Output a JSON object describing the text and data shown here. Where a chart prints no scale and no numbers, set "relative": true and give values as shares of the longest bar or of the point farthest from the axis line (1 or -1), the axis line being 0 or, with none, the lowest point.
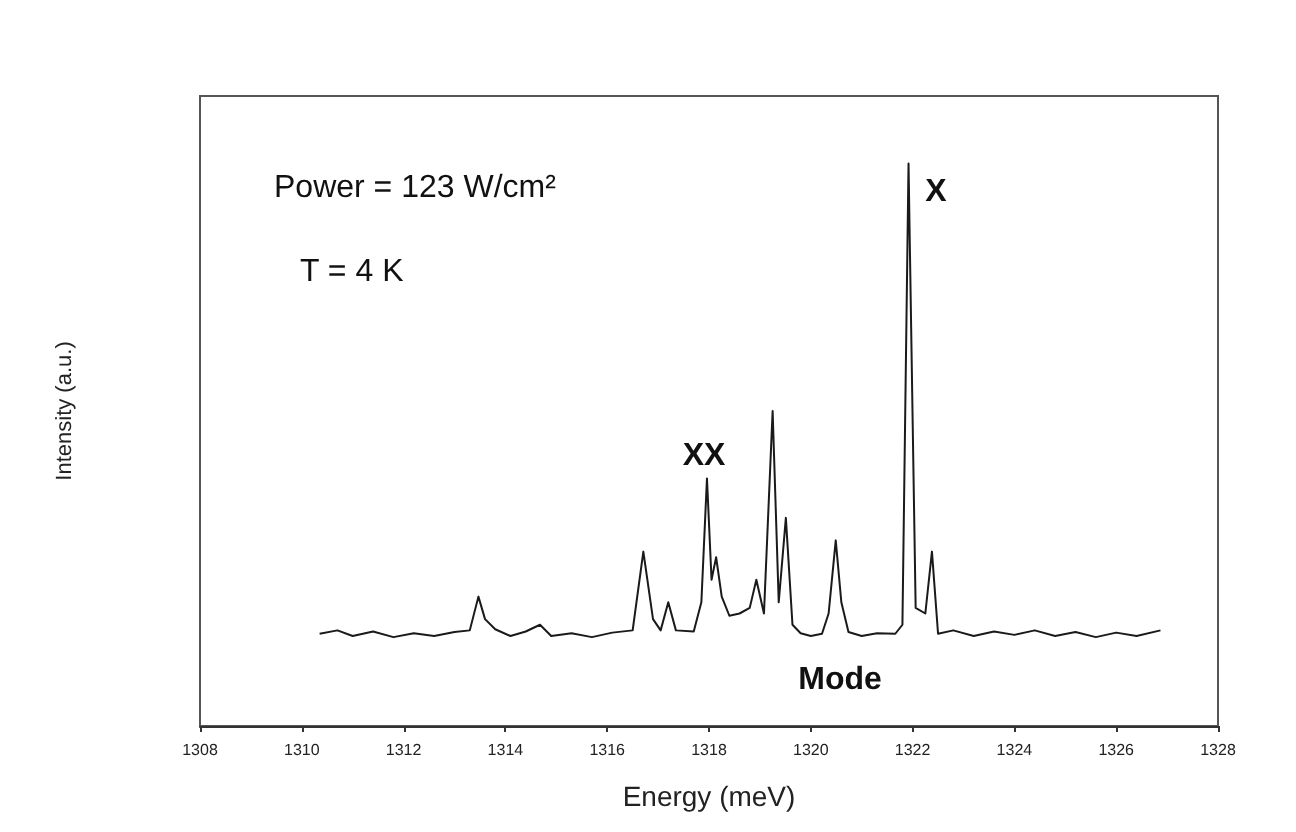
{
  "chart_data": {
    "type": "line",
    "relative": true,
    "xlabel": "Energy (meV)",
    "ylabel": "Intensity (a.u.)",
    "xlim": [
      1308,
      1328
    ],
    "xticks": [
      1308,
      1310,
      1312,
      1314,
      1316,
      1318,
      1320,
      1322,
      1324,
      1326,
      1328
    ],
    "grid": false,
    "marker": "none",
    "line_style": "solid",
    "annotations": [
      "Power = 123 W/cm²",
      "T = 4 K",
      "XX",
      "X",
      "Mode"
    ],
    "series": [
      {
        "color": "#1a1a1a",
        "x": [
          1310.35,
          1310.7,
          1311.0,
          1311.4,
          1311.8,
          1312.2,
          1312.6,
          1313.0,
          1313.3,
          1313.47,
          1313.6,
          1313.8,
          1314.1,
          1314.4,
          1314.68,
          1314.9,
          1315.3,
          1315.7,
          1316.1,
          1316.5,
          1316.71,
          1316.9,
          1317.05,
          1317.2,
          1317.35,
          1317.7,
          1317.85,
          1317.96,
          1318.05,
          1318.14,
          1318.25,
          1318.4,
          1318.6,
          1318.8,
          1318.93,
          1319.08,
          1319.25,
          1319.37,
          1319.51,
          1319.64,
          1319.8,
          1320.0,
          1320.22,
          1320.35,
          1320.49,
          1320.6,
          1320.74,
          1321.0,
          1321.3,
          1321.66,
          1321.8,
          1321.92,
          1322.06,
          1322.25,
          1322.38,
          1322.5,
          1322.8,
          1323.2,
          1323.6,
          1324.0,
          1324.4,
          1324.8,
          1325.2,
          1325.6,
          1326.0,
          1326.4,
          1326.87
        ],
        "values": [
          0.164,
          0.17,
          0.16,
          0.168,
          0.158,
          0.165,
          0.16,
          0.167,
          0.17,
          0.23,
          0.19,
          0.172,
          0.16,
          0.168,
          0.18,
          0.16,
          0.165,
          0.158,
          0.166,
          0.17,
          0.31,
          0.19,
          0.17,
          0.22,
          0.17,
          0.168,
          0.22,
          0.44,
          0.26,
          0.3,
          0.23,
          0.196,
          0.2,
          0.21,
          0.26,
          0.2,
          0.56,
          0.22,
          0.37,
          0.18,
          0.165,
          0.16,
          0.164,
          0.2,
          0.33,
          0.22,
          0.167,
          0.16,
          0.165,
          0.164,
          0.18,
          1.0,
          0.21,
          0.2,
          0.31,
          0.164,
          0.17,
          0.16,
          0.168,
          0.162,
          0.17,
          0.16,
          0.167,
          0.158,
          0.166,
          0.16,
          0.17
        ]
      }
    ]
  }
}
